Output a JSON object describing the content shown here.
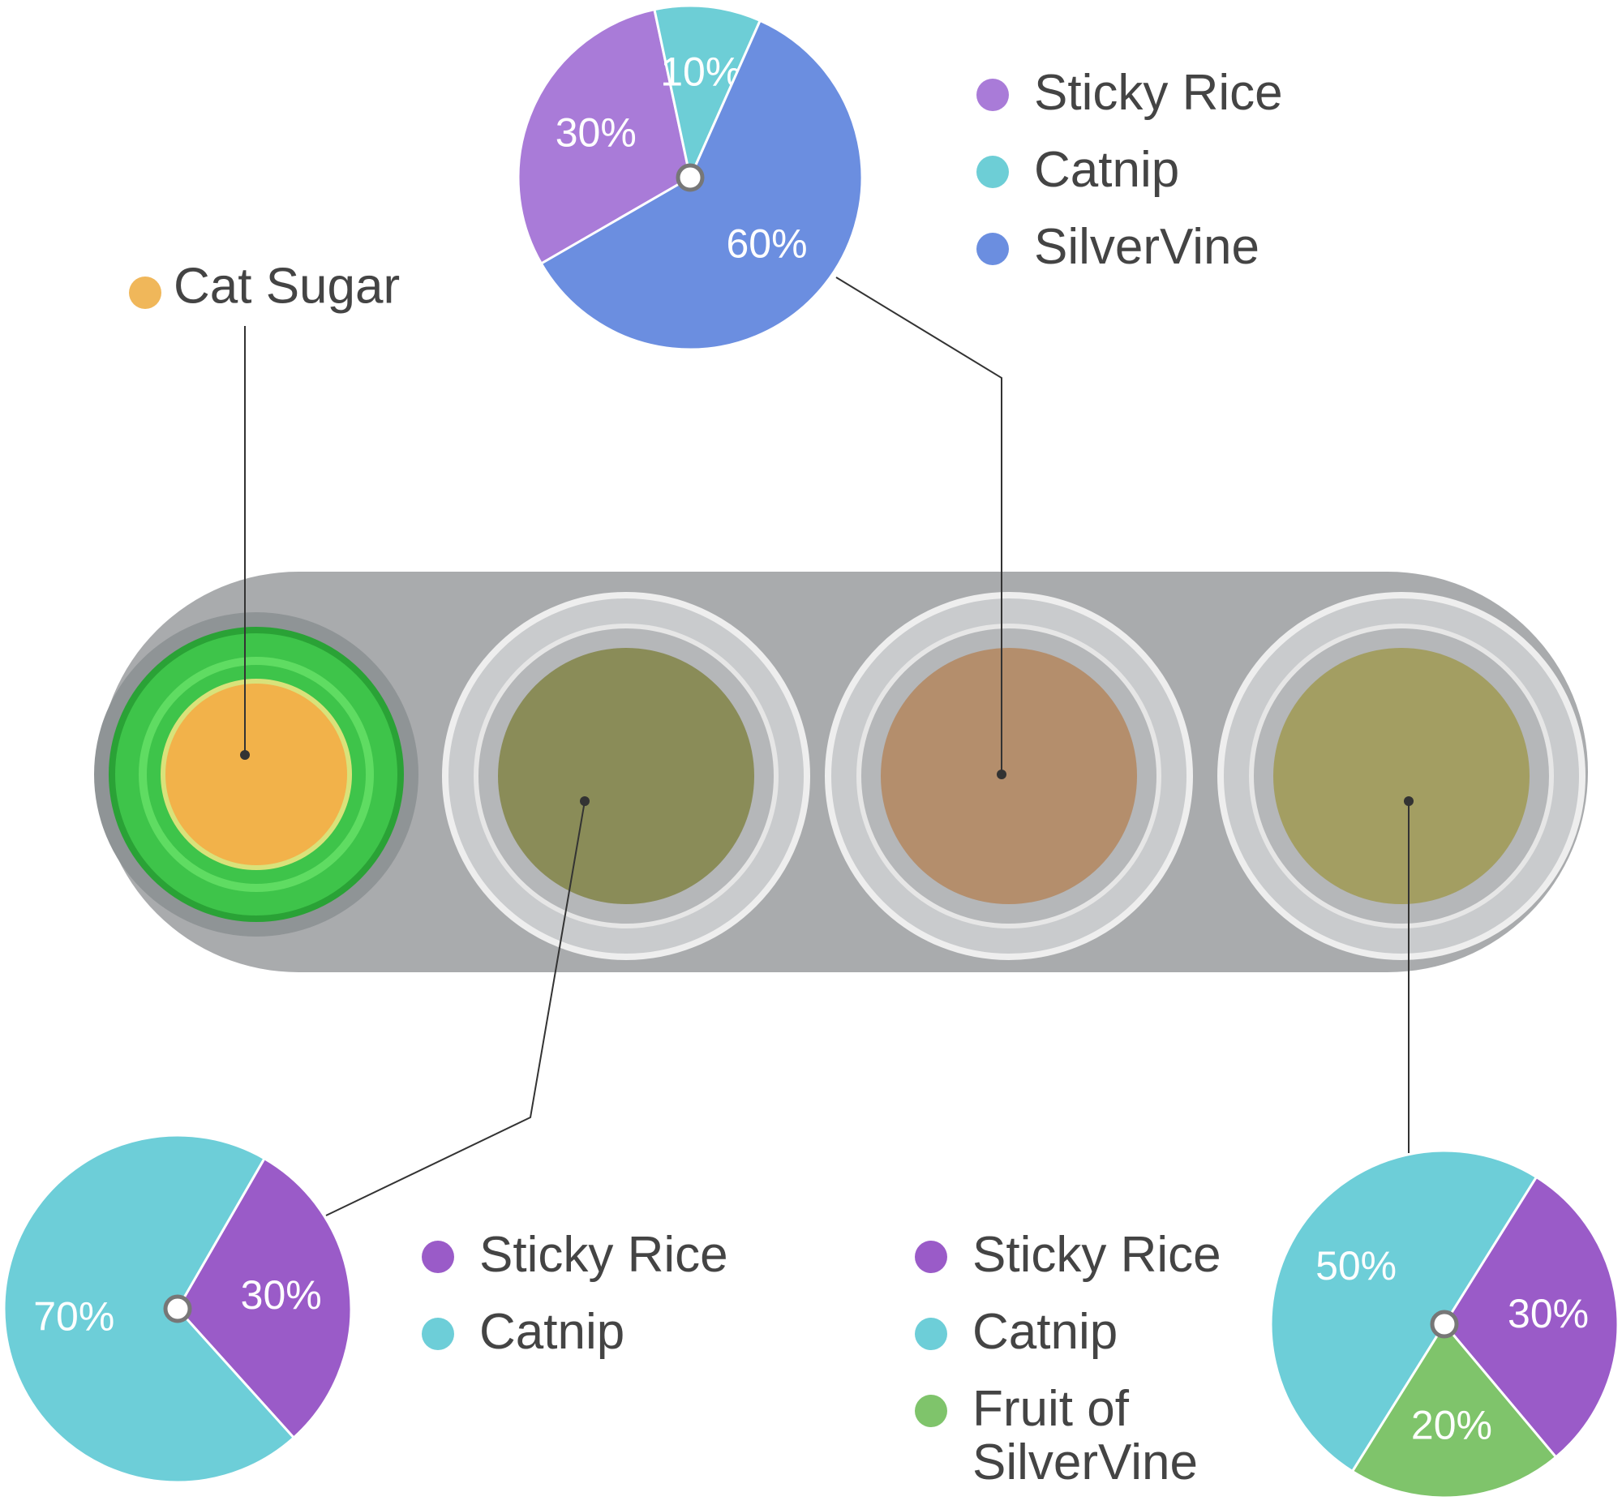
{
  "chart_data": [
    {
      "type": "pie",
      "categories": [
        "Sticky Rice",
        "Catnip",
        "SilverVine"
      ],
      "values": [
        30,
        10,
        60
      ],
      "value_labels": [
        "30%",
        "10%",
        "60%"
      ],
      "colors": [
        "#a97bd8",
        "#6dced6",
        "#6b8ee0"
      ]
    },
    {
      "type": "pie",
      "categories": [
        "Sticky Rice",
        "Catnip"
      ],
      "values": [
        30,
        70
      ],
      "value_labels": [
        "30%",
        "70%"
      ],
      "colors": [
        "#9a5bc8",
        "#6dced8"
      ]
    },
    {
      "type": "pie",
      "categories": [
        "Sticky Rice",
        "Catnip",
        "Fruit of SilverVine"
      ],
      "values": [
        30,
        50,
        20
      ],
      "value_labels": [
        "30%",
        "50%",
        "20%"
      ],
      "colors": [
        "#9a5bc8",
        "#6dced8",
        "#7fc46b"
      ]
    }
  ],
  "annotations": [
    {
      "text": "Cat Sugar",
      "color": "#f0b75a"
    }
  ]
}
